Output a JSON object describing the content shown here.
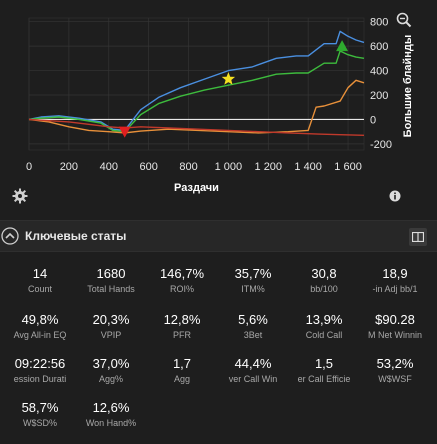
{
  "chart_data": {
    "type": "line",
    "xlabel": "Раздачи",
    "ylabel": "Большие блайнды",
    "xlim": [
      0,
      1680
    ],
    "ylim": [
      -250,
      830
    ],
    "x_ticks": [
      "0",
      "200",
      "400",
      "600",
      "800",
      "1 000",
      "1 200",
      "1 400",
      "1 600"
    ],
    "x_tick_values": [
      0,
      200,
      400,
      600,
      800,
      1000,
      1200,
      1400,
      1600
    ],
    "y_ticks": [
      "800",
      "600",
      "400",
      "200",
      "0",
      "-200"
    ],
    "y_tick_values": [
      800,
      600,
      400,
      200,
      0,
      -200
    ],
    "series": [
      {
        "color": "#4a8fe0",
        "x": [
          0,
          60,
          150,
          250,
          360,
          420,
          480,
          560,
          650,
          760,
          880,
          1000,
          1120,
          1240,
          1340,
          1400,
          1480,
          1540,
          1560,
          1600,
          1640,
          1680
        ],
        "y": [
          0,
          20,
          30,
          10,
          -20,
          -80,
          -90,
          80,
          180,
          260,
          330,
          400,
          430,
          500,
          520,
          520,
          620,
          620,
          720,
          680,
          650,
          630
        ]
      },
      {
        "color": "#3dbb3d",
        "x": [
          0,
          60,
          150,
          250,
          360,
          420,
          480,
          560,
          650,
          760,
          880,
          1000,
          1120,
          1240,
          1340,
          1400,
          1480,
          1540,
          1560,
          1600,
          1640,
          1680
        ],
        "y": [
          0,
          10,
          20,
          0,
          -30,
          -90,
          -100,
          40,
          130,
          190,
          240,
          280,
          320,
          370,
          380,
          380,
          460,
          460,
          560,
          530,
          510,
          500
        ]
      },
      {
        "color": "#e8903a",
        "x": [
          0,
          100,
          200,
          300,
          400,
          480,
          560,
          700,
          850,
          1000,
          1150,
          1300,
          1400,
          1440,
          1480,
          1560,
          1600,
          1640,
          1680
        ],
        "y": [
          0,
          -20,
          -60,
          -90,
          -100,
          -110,
          -95,
          -80,
          -90,
          -100,
          -110,
          -100,
          -90,
          100,
          110,
          150,
          260,
          320,
          300
        ]
      },
      {
        "color": "#c0392b",
        "x": [
          0,
          100,
          200,
          300,
          400,
          480,
          560,
          700,
          850,
          1000,
          1150,
          1300,
          1450,
          1560,
          1680
        ],
        "y": [
          0,
          -10,
          -20,
          -40,
          -60,
          -70,
          -60,
          -70,
          -80,
          -90,
          -100,
          -110,
          -120,
          -125,
          -130
        ]
      }
    ],
    "markers": [
      {
        "shape": "triangle-down",
        "color": "#e02020",
        "x": 480,
        "y": -100
      },
      {
        "shape": "star",
        "color": "#f5e020",
        "x": 1000,
        "y": 330
      },
      {
        "shape": "triangle-up",
        "color": "#2eaa2e",
        "x": 1570,
        "y": 600
      }
    ],
    "grid": true,
    "legend": "none"
  },
  "chart_icons": {
    "zoom": "zoom-icon",
    "settings": "gear-icon",
    "info": "info-icon"
  },
  "stats_section": {
    "title": "Ключевые статы",
    "collapse_icon": "chevron-up-icon",
    "layout_icon": "columns-icon"
  },
  "stats": [
    {
      "value": "14",
      "label": "Count"
    },
    {
      "value": "1680",
      "label": "Total Hands"
    },
    {
      "value": "146,7%",
      "label": "ROI%"
    },
    {
      "value": "35,7%",
      "label": "ITM%"
    },
    {
      "value": "30,8",
      "label": "bb/100"
    },
    {
      "value": "18,9",
      "label": "-in Adj bb/1"
    },
    {
      "value": "49,8%",
      "label": "Avg All-in EQ"
    },
    {
      "value": "20,3%",
      "label": "VPIP"
    },
    {
      "value": "12,8%",
      "label": "PFR"
    },
    {
      "value": "5,6%",
      "label": "3Bet"
    },
    {
      "value": "13,9%",
      "label": "Cold Call"
    },
    {
      "value": "$90.28",
      "label": "M Net Winnin"
    },
    {
      "value": "09:22:56",
      "label": "ession Durati"
    },
    {
      "value": "37,0%",
      "label": "Agg%"
    },
    {
      "value": "1,7",
      "label": "Agg"
    },
    {
      "value": "44,4%",
      "label": "ver Call Win"
    },
    {
      "value": "1,5",
      "label": "er Call Efficie"
    },
    {
      "value": "53,2%",
      "label": "W$WSF"
    },
    {
      "value": "58,7%",
      "label": "W$SD%"
    },
    {
      "value": "12,6%",
      "label": "Won Hand%"
    }
  ]
}
